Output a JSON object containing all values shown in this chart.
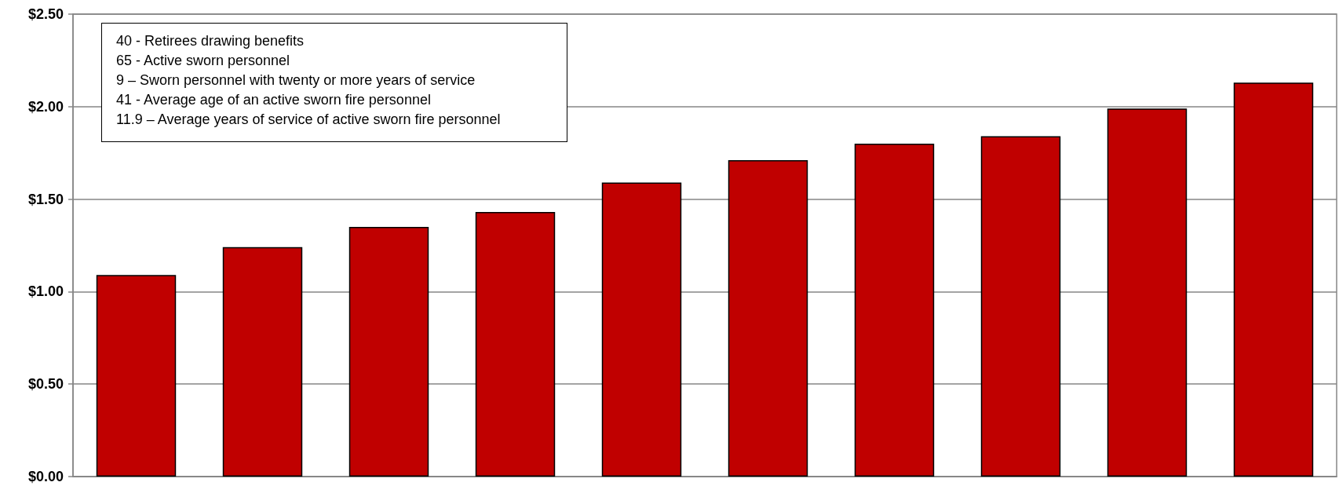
{
  "chart_data": {
    "type": "bar",
    "categories": [
      null,
      null,
      null,
      null,
      null,
      null,
      null,
      null,
      null,
      null
    ],
    "values": [
      1.09,
      1.24,
      1.35,
      1.43,
      1.59,
      1.71,
      1.8,
      1.84,
      1.99,
      2.13
    ],
    "color": "#c00000",
    "ylim": [
      0,
      2.5
    ],
    "yticks": [
      {
        "value": 0,
        "label": "$0.00"
      },
      {
        "value": 0.5,
        "label": "$0.50"
      },
      {
        "value": 1,
        "label": "$1.00"
      },
      {
        "value": 1.5,
        "label": "$1.50"
      },
      {
        "value": 2,
        "label": "$2.00"
      },
      {
        "value": 2.5,
        "label": "$2.50"
      }
    ],
    "grid": "y",
    "annotations": [
      "40 - Retirees drawing benefits",
      "65 - Active sworn personnel",
      "9 – Sworn personnel with twenty or more years of service",
      "41 - Average age of an active sworn fire personnel",
      "11.9 – Average years of service of active sworn fire personnel"
    ]
  }
}
